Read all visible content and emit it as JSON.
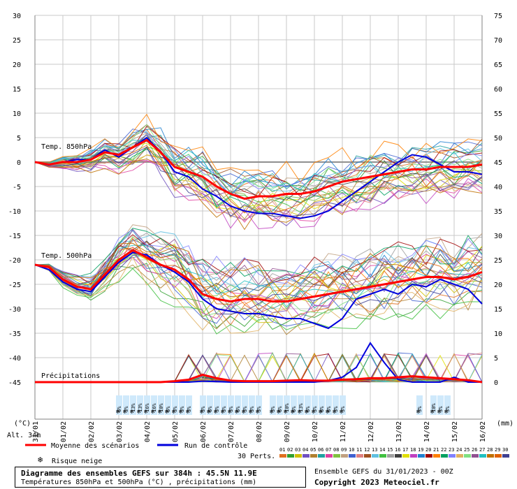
{
  "chart_data": {
    "type": "line",
    "title": "Diagramme des ensembles GEFS sur 384h : 45.5N 11.9E",
    "subtitle": "Températures 850hPa et 500hPa (°C) , précipitations (mm)",
    "run_info": "Ensemble GEFS du 31/01/2023 - 00Z",
    "copyright": "Copyright 2023 Meteociel.fr",
    "altitude": "Alt. 34m",
    "left_axis_label": "(°C)",
    "right_axis_label": "(mm)",
    "left_ylim": [
      -45,
      30
    ],
    "left_ticks": [
      30,
      25,
      20,
      15,
      10,
      5,
      0,
      -5,
      -10,
      -15,
      -20,
      -25,
      -30,
      -35,
      -40,
      -45
    ],
    "right_ticks": [
      75,
      70,
      65,
      60,
      55,
      50,
      45,
      40,
      35,
      30,
      25,
      20,
      15,
      10,
      5,
      0
    ],
    "x_tick_labels": [
      "31/01",
      "01/02",
      "02/02",
      "03/02",
      "04/02",
      "05/02",
      "06/02",
      "07/02",
      "08/02",
      "09/02",
      "10/02",
      "11/02",
      "12/02",
      "13/02",
      "14/02",
      "15/02",
      "16/02"
    ],
    "grid": true,
    "panel_labels": {
      "t850": "Temp. 850hPa",
      "t500": "Temp. 500hPa",
      "precip": "Précipitations"
    },
    "x_hours": [
      0,
      12,
      24,
      36,
      48,
      60,
      72,
      84,
      96,
      108,
      120,
      132,
      144,
      156,
      168,
      180,
      192,
      204,
      216,
      228,
      240,
      252,
      264,
      276,
      288,
      300,
      312,
      324,
      336,
      348,
      360,
      372,
      384
    ],
    "series": [
      {
        "name": "Moyenne des scénarios",
        "color": "#ff0000",
        "panel": "t850",
        "values": [
          0,
          -0.5,
          0,
          0,
          0.5,
          2,
          1.5,
          3,
          4.5,
          2,
          -1,
          -2,
          -3,
          -5,
          -6.5,
          -7.5,
          -7,
          -7,
          -6.5,
          -6.5,
          -6,
          -5,
          -4,
          -3.5,
          -3,
          -2.5,
          -2,
          -1.5,
          -1.5,
          -1,
          -1,
          -1,
          -0.5
        ]
      },
      {
        "name": "Run de contrôle",
        "color": "#0000dd",
        "panel": "t850",
        "values": [
          0,
          -0.5,
          0,
          0.5,
          0.5,
          2.5,
          1,
          3,
          5,
          2,
          -2,
          -3,
          -5.5,
          -7,
          -9,
          -10,
          -10.5,
          -10.5,
          -11,
          -11.5,
          -11,
          -10,
          -8,
          -6,
          -4,
          -2,
          0,
          1.5,
          1,
          -0.5,
          -2,
          -2,
          -2.5
        ]
      },
      {
        "name": "Moyenne des scénarios",
        "color": "#ff0000",
        "panel": "t500",
        "values": [
          -21,
          -21.5,
          -24,
          -25.5,
          -26,
          -23,
          -20,
          -18,
          -19.5,
          -21,
          -22,
          -24,
          -27,
          -28,
          -28.5,
          -28,
          -28,
          -28.5,
          -28.5,
          -28,
          -27.5,
          -27,
          -26.5,
          -26,
          -25.5,
          -25,
          -24.5,
          -24,
          -23.5,
          -23.5,
          -24,
          -23.5,
          -22.5
        ]
      },
      {
        "name": "Run de contrôle",
        "color": "#0000dd",
        "panel": "t500",
        "values": [
          -21,
          -22,
          -24.5,
          -26,
          -26.5,
          -23.5,
          -20.5,
          -18.5,
          -19,
          -21,
          -22.5,
          -24.5,
          -28,
          -30,
          -30.5,
          -31,
          -31,
          -31.5,
          -32,
          -32,
          -33,
          -34,
          -32,
          -28,
          -27,
          -26,
          -27,
          -25,
          -25.5,
          -24,
          -25,
          -26,
          -29
        ]
      },
      {
        "name": "Moyenne des scénarios",
        "color": "#ff0000",
        "panel": "precip",
        "values": [
          0,
          0,
          0,
          0,
          0,
          0,
          0,
          0,
          0,
          0,
          0.2,
          0.5,
          1.5,
          0.8,
          0.3,
          0.2,
          0.2,
          0.2,
          0.3,
          0.4,
          0.3,
          0.3,
          0.5,
          0.6,
          0.8,
          0.8,
          1,
          1.2,
          1,
          0.8,
          0.6,
          0.4,
          0
        ]
      },
      {
        "name": "Run de contrôle",
        "color": "#0000dd",
        "panel": "precip",
        "values": [
          0,
          0,
          0,
          0,
          0,
          0,
          0,
          0,
          0,
          0,
          0,
          0,
          0.2,
          0.1,
          0,
          0,
          0,
          0,
          0,
          0,
          0,
          0.3,
          1,
          3,
          8,
          4,
          0.5,
          0,
          0,
          0,
          1,
          0,
          0
        ]
      }
    ],
    "snow_risk": [
      {
        "hour": 72,
        "pct": "6%"
      },
      {
        "hour": 78,
        "pct": "3%"
      },
      {
        "hour": 84,
        "pct": "13%"
      },
      {
        "hour": 90,
        "pct": "13%"
      },
      {
        "hour": 96,
        "pct": "16%"
      },
      {
        "hour": 102,
        "pct": "16%"
      },
      {
        "hour": 108,
        "pct": "10%"
      },
      {
        "hour": 114,
        "pct": "6%"
      },
      {
        "hour": 120,
        "pct": "3%"
      },
      {
        "hour": 126,
        "pct": "3%"
      },
      {
        "hour": 132,
        "pct": "3%"
      },
      {
        "hour": 144,
        "pct": "3%"
      },
      {
        "hour": 150,
        "pct": "6%"
      },
      {
        "hour": 156,
        "pct": "3%"
      },
      {
        "hour": 162,
        "pct": "3%"
      },
      {
        "hour": 168,
        "pct": "3%"
      },
      {
        "hour": 174,
        "pct": "6%"
      },
      {
        "hour": 180,
        "pct": "3%"
      },
      {
        "hour": 186,
        "pct": "3%"
      },
      {
        "hour": 192,
        "pct": "3%"
      },
      {
        "hour": 204,
        "pct": "3%"
      },
      {
        "hour": 210,
        "pct": "6%"
      },
      {
        "hour": 216,
        "pct": "10%"
      },
      {
        "hour": 222,
        "pct": "6%"
      },
      {
        "hour": 228,
        "pct": "13%"
      },
      {
        "hour": 234,
        "pct": "6%"
      },
      {
        "hour": 240,
        "pct": "3%"
      },
      {
        "hour": 246,
        "pct": "6%"
      },
      {
        "hour": 252,
        "pct": "6%"
      },
      {
        "hour": 258,
        "pct": "3%"
      },
      {
        "hour": 264,
        "pct": "3%"
      },
      {
        "hour": 330,
        "pct": "3%"
      },
      {
        "hour": 342,
        "pct": "10%"
      },
      {
        "hour": 348,
        "pct": "3%"
      },
      {
        "hour": 354,
        "pct": "3%"
      }
    ],
    "legend": {
      "mean_label": "Moyenne des scénarios",
      "control_label": "Run de contrôle",
      "snow_label": "Risque neige",
      "perts_label": "30 Perts.",
      "mean_color": "#ff0000",
      "control_color": "#0000dd",
      "member_numbers": [
        "01",
        "02",
        "03",
        "04",
        "05",
        "06",
        "07",
        "08",
        "09",
        "10",
        "11",
        "12",
        "13",
        "14",
        "15",
        "16",
        "17",
        "18",
        "19",
        "20",
        "21",
        "22",
        "23",
        "24",
        "25",
        "26",
        "27",
        "28",
        "29",
        "30"
      ],
      "member_colors": [
        "#e07020",
        "#30a030",
        "#d0c000",
        "#7050c0",
        "#b08030",
        "#20a0a0",
        "#e040a0",
        "#80c040",
        "#c0a080",
        "#4060d0",
        "#e08080",
        "#a05020",
        "#60c0e0",
        "#40c040",
        "#a0a0a0",
        "#404040",
        "#e0e000",
        "#c040c0",
        "#2080d0",
        "#a00000",
        "#ff8000",
        "#00a060",
        "#8080ff",
        "#e0b060",
        "#80e080",
        "#905090",
        "#20c0c0",
        "#c07000",
        "#e06000",
        "#404090"
      ]
    }
  }
}
